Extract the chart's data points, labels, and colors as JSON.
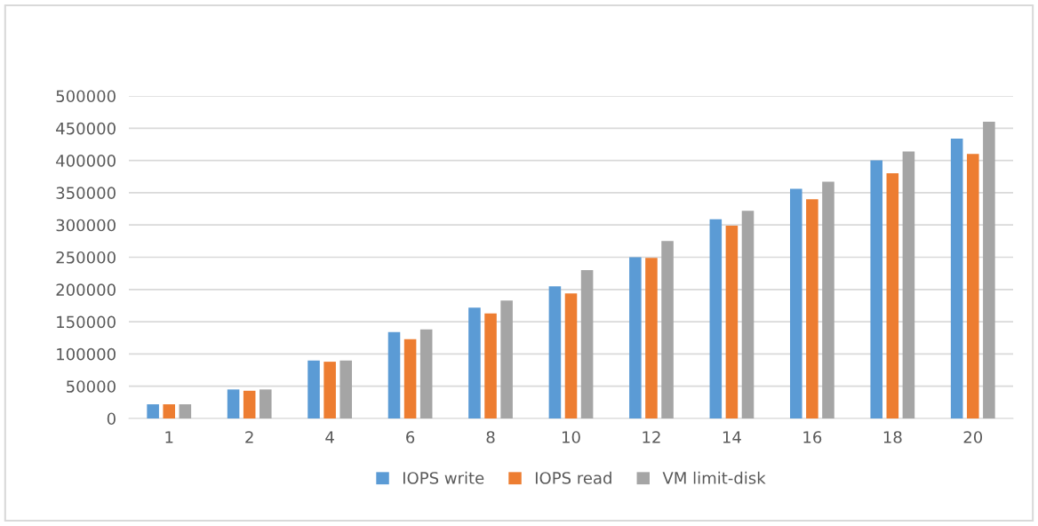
{
  "chart_data": {
    "type": "bar",
    "categories": [
      "1",
      "2",
      "4",
      "6",
      "8",
      "10",
      "12",
      "14",
      "16",
      "18",
      "20"
    ],
    "series": [
      {
        "name": "IOPS write",
        "color": "#5b9bd5",
        "values": [
          22000,
          45000,
          90000,
          134000,
          172000,
          205000,
          250000,
          309000,
          356000,
          400000,
          434000
        ]
      },
      {
        "name": "IOPS read",
        "color": "#ed7d31",
        "values": [
          22000,
          43000,
          88000,
          123000,
          163000,
          194000,
          249000,
          299000,
          340000,
          380000,
          410000
        ]
      },
      {
        "name": "VM limit-disk",
        "color": "#a5a5a5",
        "values": [
          22000,
          45000,
          90000,
          138000,
          183000,
          230000,
          275000,
          322000,
          367000,
          414000,
          460000
        ]
      }
    ],
    "ylim": [
      0,
      500000
    ],
    "yticks": [
      0,
      50000,
      100000,
      150000,
      200000,
      250000,
      300000,
      350000,
      400000,
      450000,
      500000
    ],
    "grid": "y",
    "legend": "bottom"
  }
}
